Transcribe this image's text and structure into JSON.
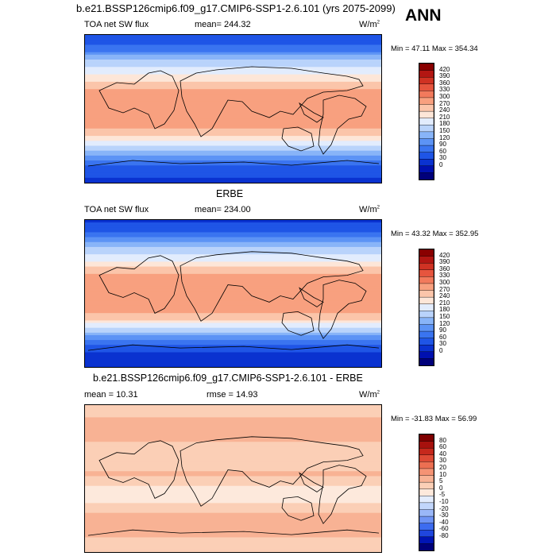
{
  "header": {
    "main_title": "b.e21.BSSP126cmip6.f09_g17.CMIP6-SSP1-2.6.101 (yrs 2075-2099)",
    "season": "ANN"
  },
  "colors": {
    "abs_scale": [
      "#00007a",
      "#0010b0",
      "#0a32d0",
      "#1f55e6",
      "#3a74f0",
      "#5c93f5",
      "#88b4f8",
      "#b9d3fb",
      "#e2ecfd",
      "#fde6d8",
      "#fbc5aa",
      "#f8a07f",
      "#f27a5c",
      "#e6553e",
      "#d03223",
      "#b31612",
      "#8a0000"
    ],
    "diff_scale": [
      "#00007a",
      "#0014b4",
      "#1f46de",
      "#3d6cf0",
      "#6f94f5",
      "#9ab7f8",
      "#c2d6fb",
      "#e3ecfd",
      "#fde9dc",
      "#fbcfb6",
      "#f8b294",
      "#f59374",
      "#ec6f52",
      "#de4a35",
      "#c6281c",
      "#a7110d",
      "#800000"
    ]
  },
  "chart_data": [
    {
      "type": "heatmap",
      "panel": "model",
      "variable": "TOA net SW flux",
      "stat_label": "mean=",
      "stat_value": "244.32",
      "units": "W/m",
      "units_exp": "2",
      "min_label": "Min =",
      "min_value": "47.11",
      "max_label": "Max =",
      "max_value": "354.34",
      "colorbar_levels": [
        "420",
        "390",
        "360",
        "330",
        "300",
        "270",
        "240",
        "210",
        "180",
        "150",
        "120",
        "90",
        "60",
        "30",
        "0"
      ],
      "lat_profile": [
        {
          "lat": 90,
          "value": 60
        },
        {
          "lat": 75,
          "value": 95
        },
        {
          "lat": 65,
          "value": 150
        },
        {
          "lat": 55,
          "value": 200
        },
        {
          "lat": 45,
          "value": 230
        },
        {
          "lat": 35,
          "value": 265
        },
        {
          "lat": 25,
          "value": 300
        },
        {
          "lat": 15,
          "value": 320
        },
        {
          "lat": 5,
          "value": 320
        },
        {
          "lat": -5,
          "value": 325
        },
        {
          "lat": -15,
          "value": 320
        },
        {
          "lat": -25,
          "value": 300
        },
        {
          "lat": -35,
          "value": 265
        },
        {
          "lat": -45,
          "value": 215
        },
        {
          "lat": -55,
          "value": 160
        },
        {
          "lat": -65,
          "value": 105
        },
        {
          "lat": -75,
          "value": 70
        },
        {
          "lat": -90,
          "value": 50
        }
      ]
    },
    {
      "type": "heatmap",
      "panel": "obs",
      "title": "ERBE",
      "variable": "TOA net SW flux",
      "stat_label": "mean=",
      "stat_value": "234.00",
      "units": "W/m",
      "units_exp": "2",
      "min_label": "Min =",
      "min_value": "43.32",
      "max_label": "Max =",
      "max_value": "352.95",
      "colorbar_levels": [
        "420",
        "390",
        "360",
        "330",
        "300",
        "270",
        "240",
        "210",
        "180",
        "150",
        "120",
        "90",
        "60",
        "30",
        "0"
      ],
      "lat_profile": [
        {
          "lat": 90,
          "value": 50
        },
        {
          "lat": 75,
          "value": 85
        },
        {
          "lat": 65,
          "value": 140
        },
        {
          "lat": 55,
          "value": 190
        },
        {
          "lat": 45,
          "value": 220
        },
        {
          "lat": 35,
          "value": 260
        },
        {
          "lat": 25,
          "value": 295
        },
        {
          "lat": 15,
          "value": 315
        },
        {
          "lat": 5,
          "value": 305
        },
        {
          "lat": -5,
          "value": 315
        },
        {
          "lat": -15,
          "value": 320
        },
        {
          "lat": -25,
          "value": 300
        },
        {
          "lat": -35,
          "value": 255
        },
        {
          "lat": -45,
          "value": 190
        },
        {
          "lat": -55,
          "value": 130
        },
        {
          "lat": -65,
          "value": 80
        },
        {
          "lat": -75,
          "value": 55
        },
        {
          "lat": -90,
          "value": 45
        }
      ]
    },
    {
      "type": "heatmap",
      "panel": "difference",
      "title": "b.e21.BSSP126cmip6.f09_g17.CMIP6-SSP1-2.6.101 - ERBE",
      "mean_label": "mean =",
      "mean_value": "10.31",
      "rmse_label": "rmse =",
      "rmse_value": "14.93",
      "units": "W/m",
      "units_exp": "2",
      "min_label": "Min =",
      "min_value": "-31.83",
      "max_label": "Max =",
      "max_value": "56.99",
      "colorbar_levels": [
        "80",
        "60",
        "40",
        "30",
        "20",
        "10",
        "5",
        "0",
        "-5",
        "-10",
        "-20",
        "-30",
        "-40",
        "-60",
        "-80"
      ],
      "lat_profile": [
        {
          "lat": 90,
          "value": 8
        },
        {
          "lat": 75,
          "value": 10
        },
        {
          "lat": 65,
          "value": 12
        },
        {
          "lat": 55,
          "value": 10
        },
        {
          "lat": 45,
          "value": 10
        },
        {
          "lat": 35,
          "value": 8
        },
        {
          "lat": 25,
          "value": 6
        },
        {
          "lat": 15,
          "value": 8
        },
        {
          "lat": 5,
          "value": 12
        },
        {
          "lat": -5,
          "value": 6
        },
        {
          "lat": -15,
          "value": 2
        },
        {
          "lat": -25,
          "value": 4
        },
        {
          "lat": -35,
          "value": 6
        },
        {
          "lat": -45,
          "value": 12
        },
        {
          "lat": -55,
          "value": 18
        },
        {
          "lat": -65,
          "value": 15
        },
        {
          "lat": -75,
          "value": 8
        },
        {
          "lat": -90,
          "value": 5
        }
      ]
    }
  ]
}
